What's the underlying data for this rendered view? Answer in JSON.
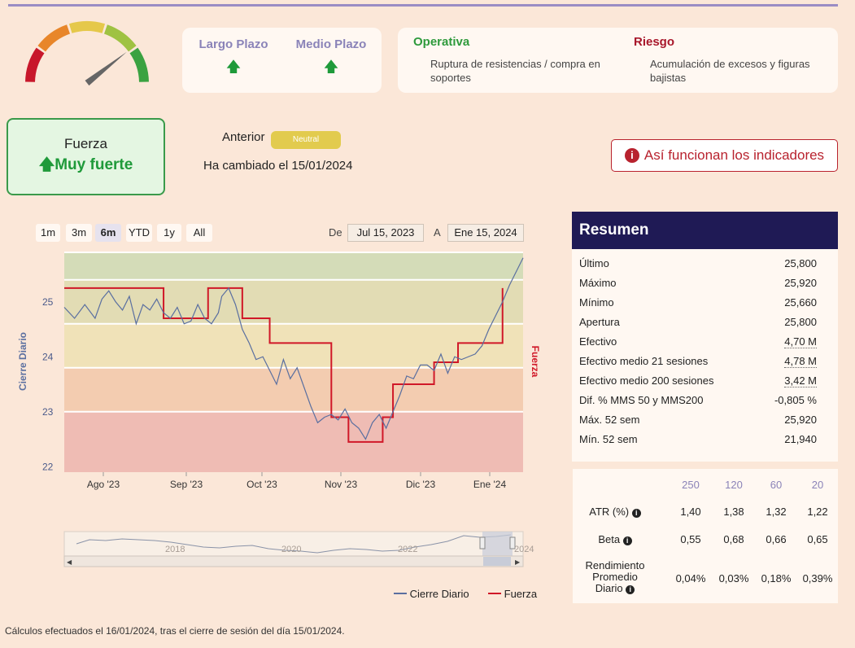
{
  "gauge": {
    "level": 0.9,
    "colors": [
      "#c8172b",
      "#e8862a",
      "#e5c84a",
      "#9fc242",
      "#3aa241"
    ]
  },
  "plazo": {
    "largo_label": "Largo Plazo",
    "medio_label": "Medio Plazo",
    "largo_trend": "arrow-up-icon",
    "medio_trend": "arrow-up-icon"
  },
  "operativa": {
    "title": "Operativa",
    "text": "Ruptura de resistencias / compra en soportes"
  },
  "riesgo": {
    "title": "Riesgo",
    "text": "Acumulación de excesos y figuras bajistas"
  },
  "fuerza": {
    "label": "Fuerza",
    "value": "Muy fuerte"
  },
  "anterior": {
    "label": "Anterior",
    "badge": "Neutral",
    "badge_color": "#e2cb4e"
  },
  "cambiado": "Ha cambiado el 15/01/2024",
  "how_button": "Así funcionan los indicadores",
  "range_buttons": [
    "1m",
    "3m",
    "6m",
    "YTD",
    "1y",
    "All"
  ],
  "selected_range": "6m",
  "date_range": {
    "from_label": "De",
    "from": "Jul 15, 2023",
    "to_label": "A",
    "to": "Ene 15, 2024"
  },
  "chart_data": {
    "type": "line",
    "ylabel_left": "Cierre Diario",
    "ylabel_right": "Fuerza",
    "yticks": [
      "22",
      "23",
      "24",
      "25"
    ],
    "ylim": [
      21.9,
      25.9
    ],
    "xticks": [
      "Ago '23",
      "Sep '23",
      "Oct '23",
      "Nov '23",
      "Dic '23",
      "Ene '24"
    ],
    "bands": [
      {
        "from": 25.4,
        "to": 25.9,
        "color": "#d4dcb8"
      },
      {
        "from": 24.6,
        "to": 25.4,
        "color": "#e2dcb4"
      },
      {
        "from": 23.8,
        "to": 24.6,
        "color": "#f0e2b8"
      },
      {
        "from": 23.0,
        "to": 23.8,
        "color": "#f3ccb0"
      },
      {
        "from": 21.9,
        "to": 23.0,
        "color": "#efbcb4"
      }
    ],
    "series": [
      {
        "name": "Cierre Diario",
        "color": "#5a6fa0",
        "points": [
          [
            0,
            24.9
          ],
          [
            3,
            24.7
          ],
          [
            6,
            24.95
          ],
          [
            9,
            24.7
          ],
          [
            11,
            25.05
          ],
          [
            13,
            25.2
          ],
          [
            15,
            25.0
          ],
          [
            17,
            24.85
          ],
          [
            19,
            25.1
          ],
          [
            21,
            24.6
          ],
          [
            23,
            24.95
          ],
          [
            25,
            24.85
          ],
          [
            27,
            25.05
          ],
          [
            29,
            24.8
          ],
          [
            31,
            24.7
          ],
          [
            33,
            24.9
          ],
          [
            35,
            24.6
          ],
          [
            37,
            24.65
          ],
          [
            39,
            24.95
          ],
          [
            41,
            24.7
          ],
          [
            43,
            24.6
          ],
          [
            45,
            24.8
          ],
          [
            46,
            25.1
          ],
          [
            48,
            25.25
          ],
          [
            50,
            24.95
          ],
          [
            52,
            24.5
          ],
          [
            54,
            24.25
          ],
          [
            56,
            23.95
          ],
          [
            58,
            24.0
          ],
          [
            60,
            23.75
          ],
          [
            62,
            23.5
          ],
          [
            64,
            23.95
          ],
          [
            66,
            23.6
          ],
          [
            68,
            23.8
          ],
          [
            70,
            23.45
          ],
          [
            72,
            23.1
          ],
          [
            74,
            22.8
          ],
          [
            76,
            22.9
          ],
          [
            78,
            22.95
          ],
          [
            80,
            22.85
          ],
          [
            82,
            23.05
          ],
          [
            84,
            22.8
          ],
          [
            86,
            22.7
          ],
          [
            88,
            22.5
          ],
          [
            90,
            22.8
          ],
          [
            92,
            22.95
          ],
          [
            94,
            22.7
          ],
          [
            96,
            23.0
          ],
          [
            98,
            23.3
          ],
          [
            100,
            23.65
          ],
          [
            102,
            23.6
          ],
          [
            104,
            23.85
          ],
          [
            106,
            23.85
          ],
          [
            108,
            23.75
          ],
          [
            110,
            24.05
          ],
          [
            112,
            23.7
          ],
          [
            114,
            24.0
          ],
          [
            116,
            23.95
          ],
          [
            118,
            24.0
          ],
          [
            120,
            24.05
          ],
          [
            122,
            24.2
          ],
          [
            124,
            24.5
          ],
          [
            126,
            24.75
          ],
          [
            128,
            25.0
          ],
          [
            130,
            25.3
          ],
          [
            132,
            25.55
          ],
          [
            134,
            25.8
          ]
        ]
      },
      {
        "name": "Fuerza",
        "color": "#d01828",
        "steps": [
          [
            0,
            25.25
          ],
          [
            29,
            25.25
          ],
          [
            29,
            24.7
          ],
          [
            42,
            24.7
          ],
          [
            42,
            25.25
          ],
          [
            52,
            25.25
          ],
          [
            52,
            24.7
          ],
          [
            60,
            24.7
          ],
          [
            60,
            24.25
          ],
          [
            78,
            24.25
          ],
          [
            78,
            22.9
          ],
          [
            83,
            22.9
          ],
          [
            83,
            22.45
          ],
          [
            93,
            22.45
          ],
          [
            93,
            22.9
          ],
          [
            96,
            22.9
          ],
          [
            96,
            23.5
          ],
          [
            108,
            23.5
          ],
          [
            108,
            23.9
          ],
          [
            115,
            23.9
          ],
          [
            115,
            24.25
          ],
          [
            128,
            24.25
          ],
          [
            128,
            25.25
          ]
        ]
      }
    ]
  },
  "navigator": {
    "labels": [
      "2018",
      "2020",
      "2022",
      "2024"
    ]
  },
  "legend": {
    "cierre": "Cierre Diario",
    "fuerza": "Fuerza"
  },
  "summary": {
    "title": "Resumen",
    "rows": [
      {
        "label": "Último",
        "value": "25,800"
      },
      {
        "label": "Máximo",
        "value": "25,920"
      },
      {
        "label": "Mínimo",
        "value": "25,660"
      },
      {
        "label": "Apertura",
        "value": "25,800"
      },
      {
        "label": "Efectivo",
        "value": "4,70 M"
      },
      {
        "label": "Efectivo medio 21 sesiones",
        "value": "4,78 M"
      },
      {
        "label": "Efectivo medio 200 sesiones",
        "value": "3,42 M"
      },
      {
        "label": "Dif. % MMS 50 y MMS200",
        "value": "-0,805 %"
      },
      {
        "label": "Máx. 52 sem",
        "value": "25,920"
      },
      {
        "label": "Mín. 52 sem",
        "value": "21,940"
      }
    ]
  },
  "stats": {
    "headers": [
      "250",
      "120",
      "60",
      "20"
    ],
    "atr_label": "ATR (%)",
    "atr": [
      "1,40",
      "1,38",
      "1,32",
      "1,22"
    ],
    "beta_label": "Beta",
    "beta": [
      "0,55",
      "0,68",
      "0,66",
      "0,65"
    ],
    "rend_label_1": "Rendimiento",
    "rend_label_2": "Promedio",
    "rend_label_3": "Diario",
    "rend": [
      "0,04%",
      "0,03%",
      "0,18%",
      "0,39%"
    ]
  },
  "footer": "Cálculos efectuados el 16/01/2024, tras el cierre de sesión del día 15/01/2024."
}
